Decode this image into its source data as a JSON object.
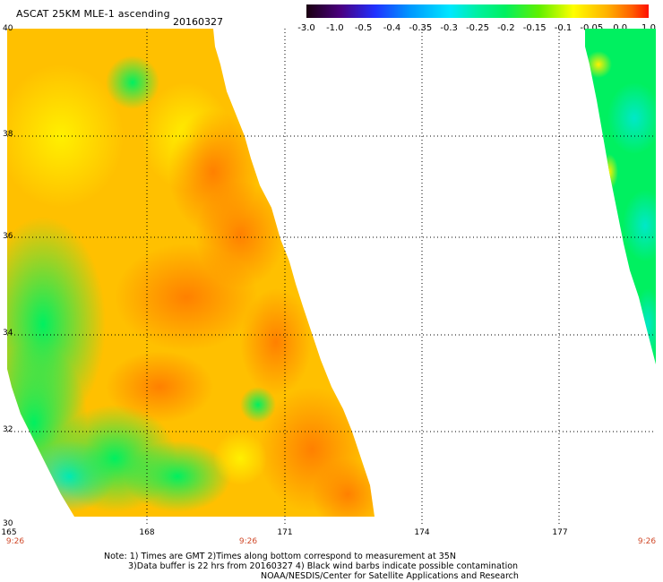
{
  "header": {
    "title": "ASCAT 25KM MLE-1 ascending",
    "date": "20160327"
  },
  "colorbar": {
    "labels": [
      "-3.0",
      "-1.0",
      "-0.5",
      "-0.4",
      "-0.35",
      "-0.3",
      "-0.25",
      "-0.2",
      "-0.15",
      "-0.1",
      "-0.05",
      "0.0",
      "1.0"
    ],
    "colors": [
      "#1a0010",
      "#4a0080",
      "#2030ff",
      "#0096ff",
      "#00d8ff",
      "#00f0b0",
      "#00f060",
      "#50f000",
      "#c0f000",
      "#ffff00",
      "#ffc000",
      "#ff8000",
      "#ff1000"
    ]
  },
  "map": {
    "lat_labels": [
      "40",
      "38",
      "36",
      "34",
      "32",
      "30"
    ],
    "lon_labels": [
      "165",
      "168",
      "171",
      "174",
      "177"
    ],
    "time_labels": [
      "9:26",
      "9:26",
      "9:26"
    ],
    "colors": {
      "grid": "#000000",
      "swath_high": "#ff8c00",
      "swath_mid": "#ffd000",
      "swath_low": "#00f060",
      "swath_cyan": "#00e8c8"
    }
  },
  "footer": {
    "note_line1": "Note: 1) Times are GMT 2)Times along bottom correspond to measurement at 35N",
    "note_line2": "3)Data buffer is 22 hrs from 20160327 4) Black wind barbs indicate possible contamination",
    "credit": "NOAA/NESDIS/Center for Satellite Applications and Research"
  }
}
